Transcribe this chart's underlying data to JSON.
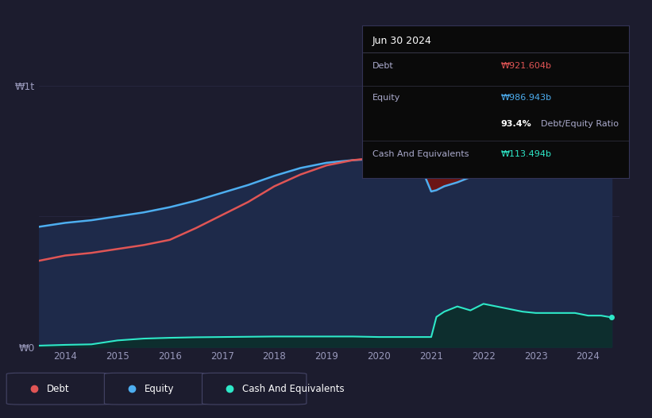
{
  "background_color": "#1c1c2e",
  "plot_bg_color": "#1c1c2e",
  "ylabel_top": "₩1t",
  "ylabel_bottom": "₩0",
  "x_ticks": [
    2014,
    2015,
    2016,
    2017,
    2018,
    2019,
    2020,
    2021,
    2022,
    2023,
    2024
  ],
  "tooltip": {
    "date": "Jun 30 2024",
    "debt_label": "Debt",
    "debt_value": "₩921.604b",
    "equity_label": "Equity",
    "equity_value": "₩986.943b",
    "ratio_value": "93.4%",
    "ratio_label": "Debt/Equity Ratio",
    "cash_label": "Cash And Equivalents",
    "cash_value": "₩113.494b"
  },
  "legend": {
    "debt": "Debt",
    "equity": "Equity",
    "cash": "Cash And Equivalents"
  },
  "colors": {
    "debt": "#e05555",
    "equity": "#4daef0",
    "cash": "#2ee8c8",
    "debt_fill": "#6b1515",
    "equity_fill": "#1e2a4a",
    "cash_fill": "#0d2e2e",
    "grid": "#2a2a45"
  },
  "years": [
    2013.5,
    2014.0,
    2014.25,
    2014.5,
    2015.0,
    2015.5,
    2016.0,
    2016.5,
    2017.0,
    2017.5,
    2018.0,
    2018.5,
    2019.0,
    2019.5,
    2020.0,
    2020.25,
    2020.5,
    2020.75,
    2021.0,
    2021.1,
    2021.25,
    2021.5,
    2021.75,
    2022.0,
    2022.25,
    2022.5,
    2022.75,
    2023.0,
    2023.25,
    2023.5,
    2023.75,
    2024.0,
    2024.25,
    2024.45
  ],
  "debt": [
    0.33,
    0.35,
    0.355,
    0.36,
    0.375,
    0.39,
    0.41,
    0.455,
    0.505,
    0.555,
    0.615,
    0.66,
    0.695,
    0.715,
    0.725,
    0.83,
    0.855,
    0.84,
    0.785,
    0.77,
    0.755,
    0.745,
    0.735,
    0.725,
    0.735,
    0.745,
    0.755,
    0.755,
    0.755,
    0.775,
    0.815,
    0.895,
    0.915,
    0.922
  ],
  "equity": [
    0.46,
    0.475,
    0.48,
    0.485,
    0.5,
    0.515,
    0.535,
    0.56,
    0.59,
    0.62,
    0.655,
    0.685,
    0.705,
    0.715,
    0.72,
    0.72,
    0.72,
    0.715,
    0.595,
    0.6,
    0.615,
    0.63,
    0.65,
    0.67,
    0.695,
    0.715,
    0.745,
    0.77,
    0.795,
    0.835,
    0.875,
    0.915,
    0.955,
    0.987
  ],
  "cash": [
    0.005,
    0.008,
    0.009,
    0.01,
    0.025,
    0.032,
    0.035,
    0.037,
    0.038,
    0.039,
    0.04,
    0.04,
    0.04,
    0.04,
    0.038,
    0.038,
    0.038,
    0.038,
    0.038,
    0.115,
    0.135,
    0.155,
    0.14,
    0.165,
    0.155,
    0.145,
    0.135,
    0.13,
    0.13,
    0.13,
    0.13,
    0.12,
    0.12,
    0.113
  ],
  "ylim": [
    0,
    1.12
  ],
  "xlim": [
    2013.5,
    2024.6
  ]
}
